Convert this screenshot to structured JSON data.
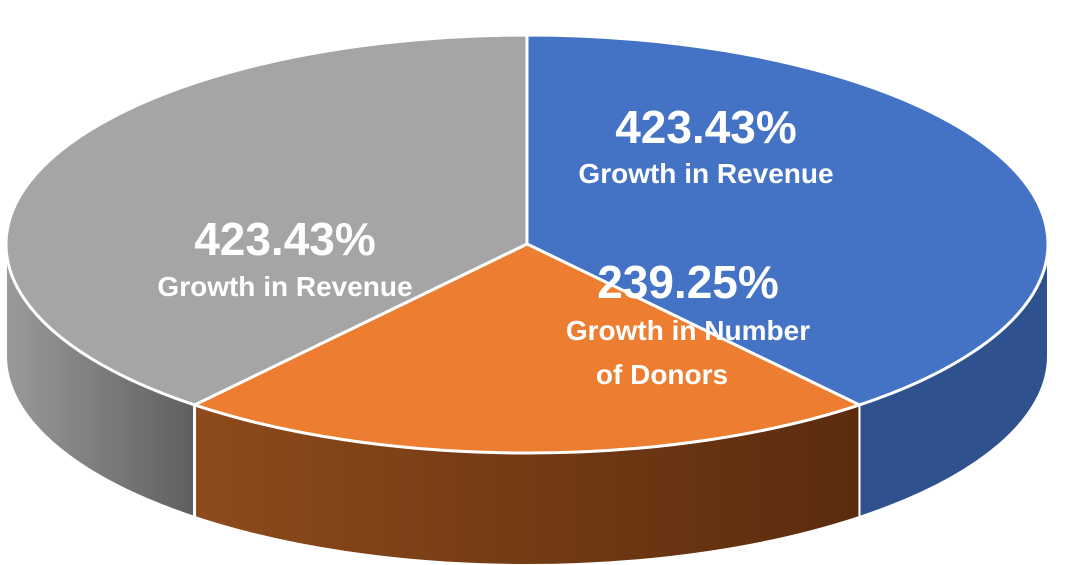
{
  "chart_data": {
    "type": "pie",
    "style": "3d",
    "slices": [
      {
        "value_label": "423.43%",
        "caption_lines": [
          "Growth in Revenue"
        ],
        "value": 423.43,
        "color": "#4472C4",
        "side_color": "#2F528F",
        "label_color": "#FFFFFF"
      },
      {
        "value_label": "239.25%",
        "caption_lines": [
          "Growth in Number",
          "of Donors"
        ],
        "value": 239.25,
        "color": "#ED7D31",
        "side_color": "#843C0C",
        "label_color": "#FFFFFF"
      },
      {
        "value_label": "423.43%",
        "caption_lines": [
          "Growth in Revenue"
        ],
        "value": 423.43,
        "color": "#A5A5A5",
        "side_color": "#6F6F6F",
        "label_color": "#FFFFFF"
      }
    ]
  }
}
